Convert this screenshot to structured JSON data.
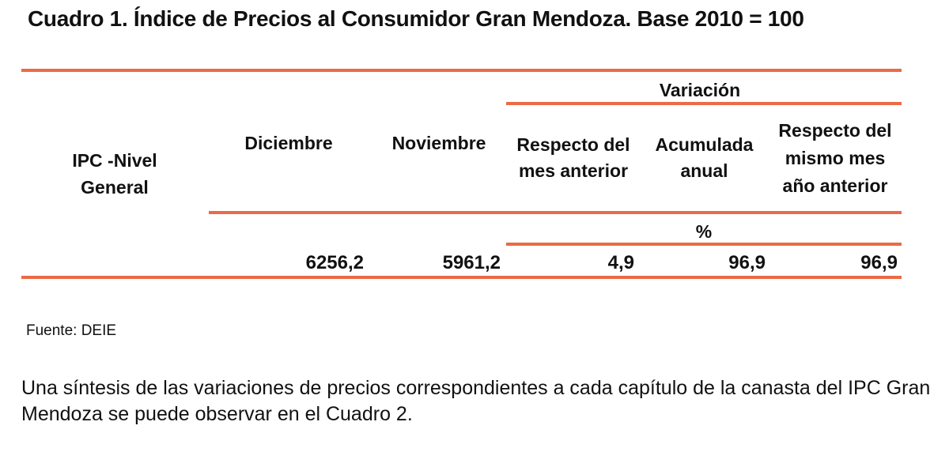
{
  "title": "Cuadro 1. Índice de Precios al Consumidor Gran Mendoza. Base 2010 = 100",
  "table": {
    "row_header": "IPC -Nivel General",
    "columns": {
      "diciembre": "Diciembre",
      "noviembre": "Noviembre",
      "variacion_group": "Variación",
      "resp_mes_anterior": "Respecto del mes anterior",
      "acumulada_anual": "Acumulada anual",
      "resp_mismo_mes": "Respecto del mismo mes año anterior"
    },
    "unit": "%",
    "values": {
      "diciembre": "6256,2",
      "noviembre": "5961,2",
      "resp_mes_anterior": "4,9",
      "acumulada_anual": "96,9",
      "resp_mismo_mes": "96,9"
    }
  },
  "source": "Fuente: DEIE",
  "paragraph": "Una síntesis de las variaciones de precios correspondientes a cada capítulo de la canasta del IPC Gran Mendoza se puede observar en el Cuadro 2.",
  "colors": {
    "accent_rule": "#ea6b46",
    "text": "#111111"
  }
}
